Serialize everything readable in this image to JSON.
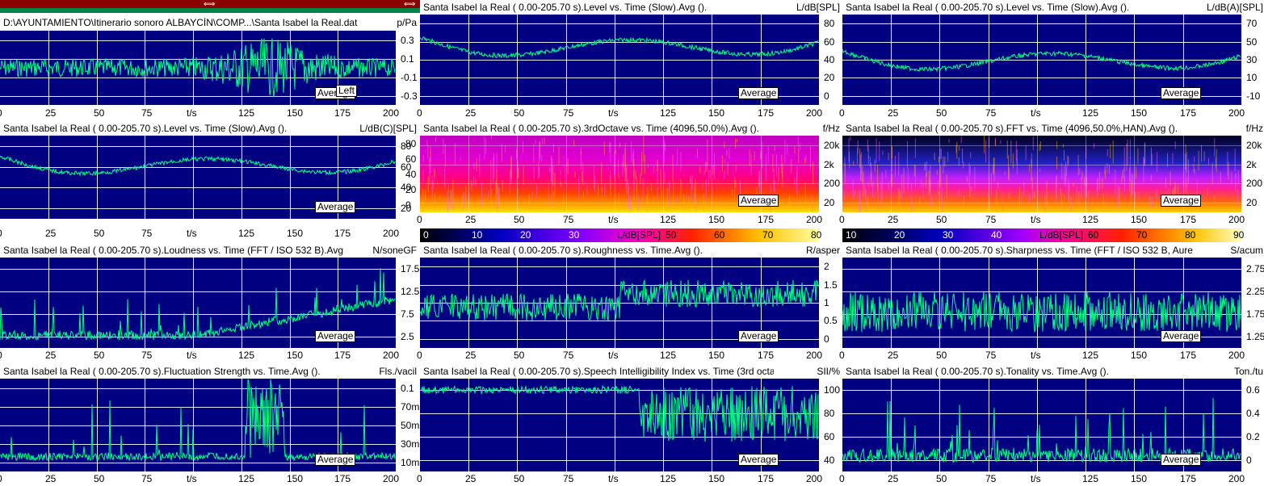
{
  "header": {
    "file_path": "D:\\AYUNTAMIENTO\\Itinerario sonoro ALBAYCÍN\\COMP...\\Santa Isabel la Real.dat",
    "waveform_unit": "p/Pa",
    "waveform_channel": "Left",
    "scroll_arrow_left": "⟺",
    "scroll_arrow_right": "⟺"
  },
  "colors": {
    "plot_bg": "#000080",
    "trace": "#00ff80",
    "grid": "#ffffff",
    "scrollbar": "#8b0000"
  },
  "time_axis": {
    "label": "t/s",
    "ticks": [
      "0",
      "25",
      "50",
      "75",
      "125",
      "150",
      "175",
      "200"
    ]
  },
  "average_label": "Average",
  "panels": [
    {
      "id": "waveform",
      "title": "",
      "unit": "p/Pa",
      "yticks": [
        "0.3",
        "0.1",
        "-0.1",
        "-0.3"
      ],
      "tag": "Left"
    },
    {
      "id": "level-slow",
      "title": "Santa Isabel la Real ( 0.00-205.70 s).Level vs. Time (Slow).Avg ().",
      "unit": "L/dB[SPL]",
      "yticks": [
        "80",
        "60",
        "40",
        "20",
        "0"
      ]
    },
    {
      "id": "level-slow-a",
      "title": "Santa Isabel la Real ( 0.00-205.70 s).Level vs. Time (Slow).Avg ().",
      "unit": "L/dB(A)[SPL]",
      "yticks": [
        "70",
        "50",
        "30",
        "10",
        "-10"
      ]
    },
    {
      "id": "level-slow-c",
      "title": "Santa Isabel la Real ( 0.00-205.70 s).Level vs. Time (Slow).Avg ().",
      "unit": "L/dB(C)[SPL]",
      "yticks": [
        "80",
        "60",
        "40",
        "20"
      ]
    },
    {
      "id": "third-octave",
      "title": "Santa Isabel la Real ( 0.00-205.70 s).3rdOctave vs. Time (4096,50.0%).Avg ().",
      "unit": "f/Hz",
      "yticks": [
        "20k",
        "2k",
        "200",
        "20"
      ],
      "leftticks": [
        "80",
        "60",
        "40",
        "20",
        "0"
      ],
      "colorbar": {
        "ticks": [
          "0",
          "10",
          "20",
          "30",
          "L/dB[SPL]",
          "50",
          "60",
          "70",
          "80"
        ]
      }
    },
    {
      "id": "fft",
      "title": "Santa Isabel la Real ( 0.00-205.70 s).FFT vs. Time (4096,50.0%,HAN).Avg ().",
      "unit": "f/Hz",
      "yticks": [
        "20k",
        "2k",
        "200",
        "20"
      ],
      "colorbar": {
        "ticks": [
          "10",
          "20",
          "30",
          "40",
          "L/dB[SPL]",
          "60",
          "70",
          "80",
          "90"
        ]
      }
    },
    {
      "id": "loudness",
      "title": "Santa Isabel la Real ( 0.00-205.70 s).Loudness vs. Time (FFT / ISO 532 B).Avg",
      "unit": "N/soneGF",
      "yticks": [
        "17.5",
        "12.5",
        "7.5",
        "2.5"
      ]
    },
    {
      "id": "roughness",
      "title": "Santa Isabel la Real ( 0.00-205.70 s).Roughness vs. Time.Avg ().",
      "unit": "R/asper",
      "yticks": [
        "2",
        "1.5",
        "1",
        "0.5",
        "0"
      ]
    },
    {
      "id": "sharpness",
      "title": "Santa Isabel la Real ( 0.00-205.70 s).Sharpness vs. Time (FFT / ISO 532 B, Aure",
      "unit": "S/acum",
      "yticks": [
        "2.75",
        "2.25",
        "1.75",
        "1.25"
      ]
    },
    {
      "id": "fluctuation",
      "title": "Santa Isabel la Real ( 0.00-205.70 s).Fluctuation Strength vs. Time.Avg ().",
      "unit": "Fls./vacil",
      "yticks": [
        "0.1",
        "70m",
        "50m",
        "30m",
        "10m"
      ]
    },
    {
      "id": "sii",
      "title": "Santa Isabel la Real ( 0.00-205.70 s).Speech Intelligibility Index vs. Time (3rd octav",
      "unit": "SII/%",
      "yticks": [
        "100",
        "80",
        "60",
        "40"
      ]
    },
    {
      "id": "tonality",
      "title": "Santa Isabel la Real ( 0.00-205.70 s).Tonality vs. Time.Avg ().",
      "unit": "Ton./tu",
      "yticks": [
        "0.6",
        "0.4",
        "0.2",
        "0"
      ]
    }
  ]
}
